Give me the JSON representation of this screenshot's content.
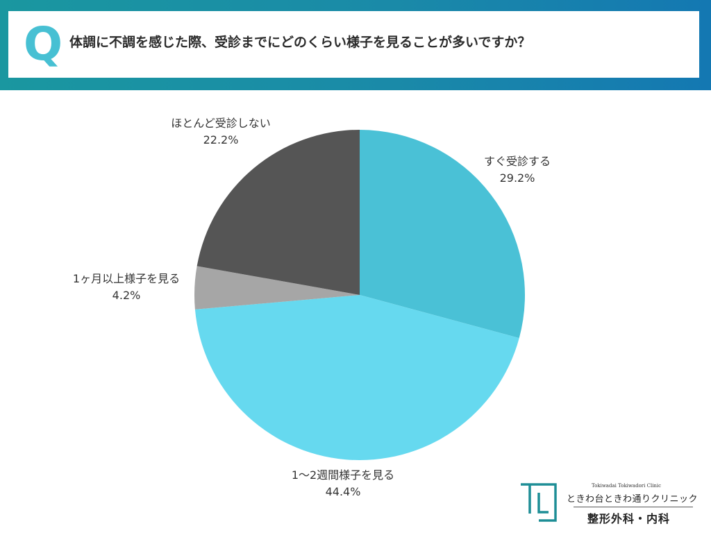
{
  "header": {
    "q_mark": "Q",
    "question": "体調に不調を感じた際、受診までにどのくらい様子を見ることが多いですか？"
  },
  "chart_data": {
    "type": "pie",
    "title": "",
    "start_angle_deg": 0,
    "direction": "clockwise",
    "slices": [
      {
        "label": "すぐ受診する",
        "value": 29.2,
        "value_label": "29.2%",
        "color": "#4ac1d6"
      },
      {
        "label": "1〜2週間様子を見る",
        "value": 44.4,
        "value_label": "44.4%",
        "color": "#66d9ef"
      },
      {
        "label": "1ヶ月以上様子を見る",
        "value": 4.2,
        "value_label": "4.2%",
        "color": "#a6a6a6"
      },
      {
        "label": "ほとんど受診しない",
        "value": 22.2,
        "value_label": "22.2%",
        "color": "#555555"
      }
    ]
  },
  "logo": {
    "name_en": "Tokiwadai Tokiwadori Clinic",
    "name_jp": "ときわ台ときわ通りクリニック",
    "departments": "整形外科・内科",
    "mark_color": "#1e8e96"
  }
}
